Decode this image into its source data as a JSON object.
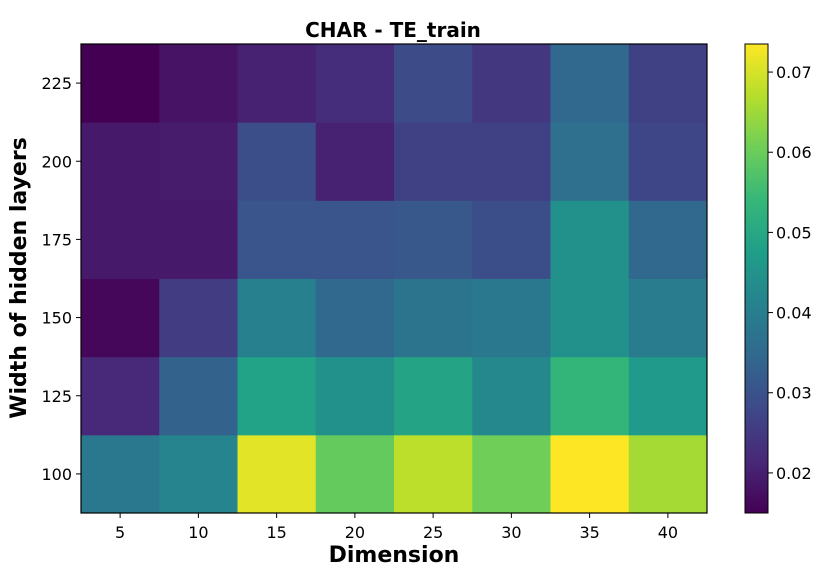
{
  "chart_data": {
    "type": "heatmap",
    "title": "CHAR - TE_train",
    "xlabel": "Dimension",
    "ylabel": "Width of hidden layers",
    "x": [
      "5",
      "10",
      "15",
      "20",
      "25",
      "30",
      "35",
      "40"
    ],
    "y": [
      "100",
      "125",
      "150",
      "175",
      "200",
      "225"
    ],
    "values": [
      [
        0.0385,
        0.0415,
        0.071,
        0.0595,
        0.0675,
        0.0605,
        0.0735,
        0.0655
      ],
      [
        0.0215,
        0.0335,
        0.0485,
        0.0445,
        0.049,
        0.0425,
        0.0535,
        0.0465
      ],
      [
        0.016,
        0.0255,
        0.0405,
        0.0345,
        0.0375,
        0.0385,
        0.0445,
        0.0395
      ],
      [
        0.019,
        0.019,
        0.0305,
        0.0305,
        0.031,
        0.029,
        0.0445,
        0.0345
      ],
      [
        0.019,
        0.0195,
        0.029,
        0.0205,
        0.0265,
        0.0265,
        0.0365,
        0.0275
      ],
      [
        0.015,
        0.018,
        0.0205,
        0.0225,
        0.0285,
        0.0245,
        0.0345,
        0.0265
      ]
    ],
    "colorbar": {
      "range": [
        0.015,
        0.0735
      ],
      "ticks": [
        "0.02",
        "0.03",
        "0.04",
        "0.05",
        "0.06",
        "0.07"
      ],
      "tick_values": [
        0.02,
        0.03,
        0.04,
        0.05,
        0.06,
        0.07
      ],
      "colormap": "viridis"
    },
    "colormap_stops": [
      "#440154",
      "#482878",
      "#3e4989",
      "#31688e",
      "#26828e",
      "#1f9e89",
      "#35b779",
      "#6ece58",
      "#b5de2b",
      "#fde725"
    ]
  }
}
